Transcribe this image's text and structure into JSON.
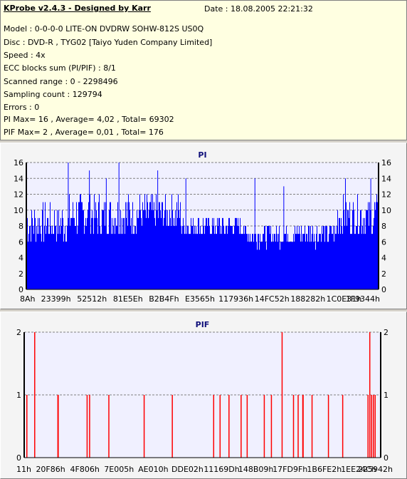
{
  "info": {
    "title": "KProbe v2.4.3 - Designed by Karr",
    "date": "Date : 18.08.2005 22:21:32",
    "lines": [
      "Model : 0-0-0-0 LITE-ON DVDRW SOHW-812S  US0Q",
      "Disc : DVD-R , TYG02 [Taiyo Yuden Company Limited]",
      "Speed : 4x",
      "ECC blocks sum (PI/PIF) : 8/1",
      "Scanned range : 0 - 2298496",
      "Sampling count : 129794",
      "Errors : 0",
      "PI Max= 16 , Average= 4,02 , Total= 69302",
      "PIF Max= 2 , Average= 0,01 , Total= 176"
    ]
  },
  "chart_data": [
    {
      "type": "bar",
      "title": "PI",
      "color": "#0000ff",
      "ylim": [
        0,
        16
      ],
      "yticks": [
        0,
        2,
        4,
        6,
        8,
        10,
        12,
        14,
        16
      ],
      "grid": true,
      "xticks": [
        "8Ah",
        "23399h",
        "52512h",
        "81E5Eh",
        "B2B4Fh",
        "E3565h",
        "117936h",
        "14FC52h",
        "188282h",
        "1C0E31h",
        "1F9344h"
      ],
      "series": [
        {
          "segments": [
            {
              "from": 0,
              "to": 0.12,
              "base": 7.5,
              "spread": 5.0
            },
            {
              "from": 0.12,
              "to": 0.32,
              "base": 8.5,
              "spread": 5.5
            },
            {
              "from": 0.32,
              "to": 0.44,
              "base": 9.0,
              "spread": 4.5
            },
            {
              "from": 0.44,
              "to": 0.62,
              "base": 7.5,
              "spread": 3.0
            },
            {
              "from": 0.62,
              "to": 0.88,
              "base": 6.5,
              "spread": 3.0
            },
            {
              "from": 0.88,
              "to": 1.0,
              "base": 8.5,
              "spread": 5.0
            }
          ],
          "spikes": [
            {
              "x": 0.118,
              "value": 16
            },
            {
              "x": 0.178,
              "value": 15
            },
            {
              "x": 0.226,
              "value": 14
            },
            {
              "x": 0.262,
              "value": 16
            },
            {
              "x": 0.372,
              "value": 15
            },
            {
              "x": 0.452,
              "value": 14
            },
            {
              "x": 0.648,
              "value": 14
            },
            {
              "x": 0.73,
              "value": 13
            },
            {
              "x": 0.905,
              "value": 14
            },
            {
              "x": 0.977,
              "value": 14
            }
          ]
        }
      ]
    },
    {
      "type": "bar",
      "title": "PIF",
      "color": "#ff0000",
      "ylim": [
        0,
        2
      ],
      "yticks": [
        0,
        1,
        2
      ],
      "grid": true,
      "xticks": [
        "11h",
        "20F86h",
        "4F806h",
        "7E005h",
        "AE010h",
        "DDE02h",
        "11169Dh",
        "148B09h",
        "17FD9Fh",
        "1B6FE2h",
        "1EE24Ch",
        "225942h"
      ],
      "series": [
        {
          "values_at": [
            {
              "x": 0.006,
              "value": 1
            },
            {
              "x": 0.028,
              "value": 2
            },
            {
              "x": 0.093,
              "value": 1
            },
            {
              "x": 0.094,
              "value": 1
            },
            {
              "x": 0.175,
              "value": 1
            },
            {
              "x": 0.182,
              "value": 1
            },
            {
              "x": 0.236,
              "value": 1
            },
            {
              "x": 0.335,
              "value": 1
            },
            {
              "x": 0.414,
              "value": 1
            },
            {
              "x": 0.53,
              "value": 1
            },
            {
              "x": 0.548,
              "value": 1
            },
            {
              "x": 0.573,
              "value": 1
            },
            {
              "x": 0.607,
              "value": 1
            },
            {
              "x": 0.624,
              "value": 1
            },
            {
              "x": 0.672,
              "value": 1
            },
            {
              "x": 0.692,
              "value": 1
            },
            {
              "x": 0.722,
              "value": 2
            },
            {
              "x": 0.754,
              "value": 1
            },
            {
              "x": 0.767,
              "value": 1
            },
            {
              "x": 0.78,
              "value": 1
            },
            {
              "x": 0.781,
              "value": 1
            },
            {
              "x": 0.806,
              "value": 1
            },
            {
              "x": 0.852,
              "value": 1
            },
            {
              "x": 0.892,
              "value": 1
            },
            {
              "x": 0.963,
              "value": 1
            },
            {
              "x": 0.968,
              "value": 2
            },
            {
              "x": 0.973,
              "value": 1
            },
            {
              "x": 0.978,
              "value": 1
            },
            {
              "x": 0.983,
              "value": 1
            }
          ]
        }
      ]
    }
  ]
}
